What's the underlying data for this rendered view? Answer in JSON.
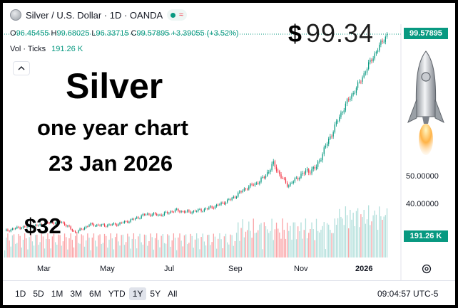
{
  "header": {
    "symbol": "Silver / U.S. Dollar · 1D · OANDA",
    "ohlc": {
      "o_label": "O",
      "o": "96.45455",
      "h_label": "H",
      "h": "99.68025",
      "l_label": "L",
      "l": "96.33715",
      "c_label": "C",
      "c": "99.57895",
      "change": "+3.39055 (+3.52%)"
    },
    "volume_label": "Vol · Ticks",
    "volume_value": "191.26 K",
    "collapse_icon": "chevron-up-icon"
  },
  "overlay": {
    "price_dollar": "$",
    "price_value": "99.34",
    "title": "Silver",
    "subtitle": "one year chart",
    "date": "23 Jan 2026",
    "start_price": "$32"
  },
  "price_axis": {
    "current_badge": "99.57895",
    "ticks": [
      "50.00000",
      "40.00000"
    ],
    "volume_badge": "191.26 K"
  },
  "time_axis": {
    "ticks": [
      "Mar",
      "May",
      "Jul",
      "Sep",
      "Nov",
      "2026"
    ],
    "settings_icon": "gear-icon"
  },
  "toolbar": {
    "ranges": [
      "1D",
      "5D",
      "1M",
      "3M",
      "6M",
      "YTD",
      "1Y",
      "5Y",
      "All"
    ],
    "active": "1Y",
    "clock": "09:04:57 UTC-5"
  },
  "colors": {
    "up": "#089981",
    "down": "#f23645",
    "vol_up": "#b2dfdb",
    "vol_down": "#faa1a4",
    "badge": "#089981"
  },
  "chart_data": {
    "type": "line",
    "title": "",
    "xlabel": "",
    "ylabel": "",
    "x": [
      "2025-01-27",
      "2025-02-10",
      "2025-02-24",
      "2025-03-10",
      "2025-03-24",
      "2025-04-07",
      "2025-04-21",
      "2025-05-05",
      "2025-05-19",
      "2025-06-02",
      "2025-06-16",
      "2025-06-30",
      "2025-07-14",
      "2025-07-28",
      "2025-08-11",
      "2025-08-25",
      "2025-09-08",
      "2025-09-22",
      "2025-10-06",
      "2025-10-16",
      "2025-10-28",
      "2025-11-10",
      "2025-11-24",
      "2025-12-08",
      "2025-12-22",
      "2026-01-05",
      "2026-01-15",
      "2026-01-23"
    ],
    "series": [
      {
        "values": [
          30.5,
          31.8,
          32.2,
          33.3,
          33.8,
          30.0,
          32.8,
          32.5,
          33.0,
          34.5,
          36.5,
          36.2,
          37.8,
          37.2,
          38.0,
          39.5,
          41.8,
          45.5,
          48.0,
          53.0,
          46.5,
          50.5,
          52.0,
          60.5,
          70.0,
          78.0,
          89.0,
          99.58
        ]
      }
    ],
    "ylim": [
      28,
      101
    ],
    "axis_ticks_shown": [
      50,
      40
    ],
    "volume_last": "191.26 K"
  }
}
